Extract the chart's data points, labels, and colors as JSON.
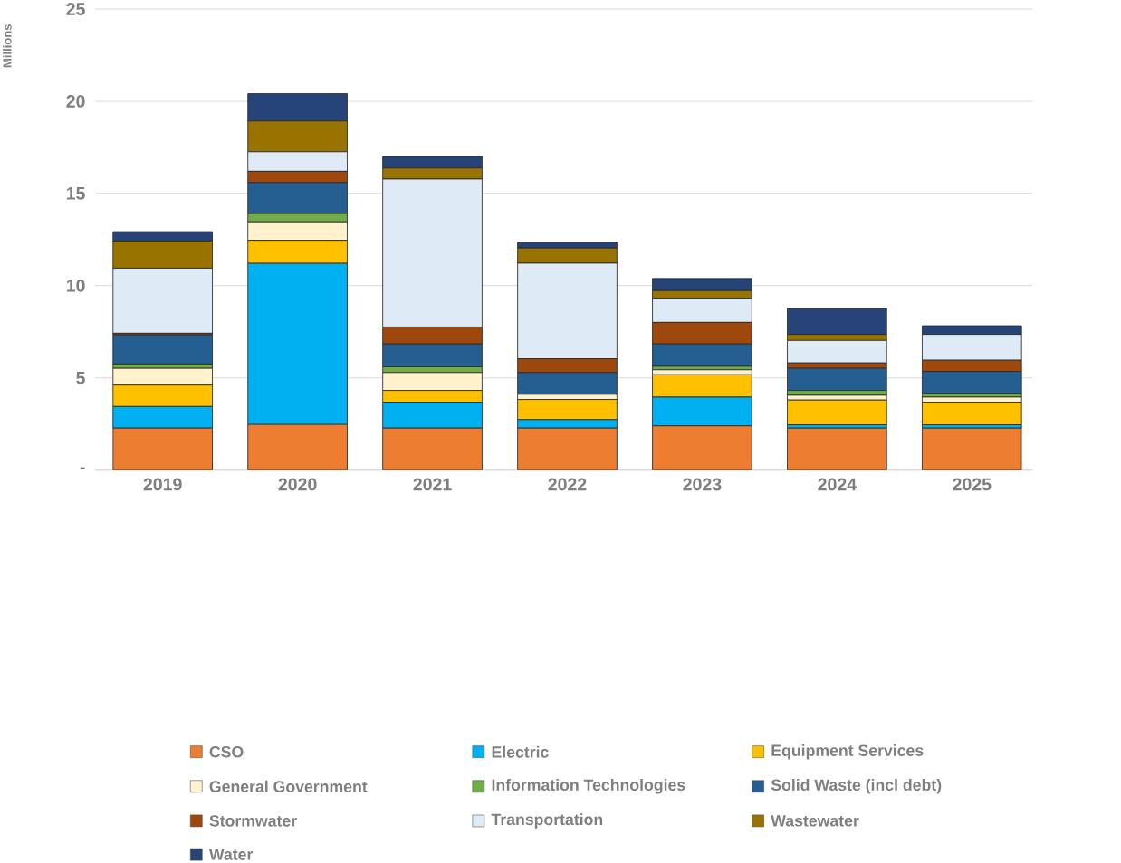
{
  "chart_data": {
    "type": "bar",
    "stacked": true,
    "ylabel": "Millions",
    "categories": [
      "2019",
      "2020",
      "2021",
      "2022",
      "2023",
      "2024",
      "2025"
    ],
    "series": [
      {
        "name": "CSO",
        "color": "#ed7d31",
        "values": [
          2.28,
          2.48,
          2.28,
          2.28,
          2.4,
          2.28,
          2.28
        ]
      },
      {
        "name": "Electric",
        "color": "#00b0f0",
        "values": [
          1.17,
          8.73,
          1.4,
          0.46,
          1.56,
          0.18,
          0.18
        ]
      },
      {
        "name": "Equipment Services",
        "color": "#ffc000",
        "values": [
          1.16,
          1.25,
          0.64,
          1.09,
          1.21,
          1.34,
          1.22
        ]
      },
      {
        "name": "General Government",
        "color": "#fff2cc",
        "values": [
          0.91,
          1.0,
          0.97,
          0.28,
          0.27,
          0.26,
          0.28
        ]
      },
      {
        "name": "Information Technologies",
        "color": "#70ad47",
        "values": [
          0.23,
          0.45,
          0.31,
          0,
          0.19,
          0.26,
          0.19
        ]
      },
      {
        "name": "Solid Waste (incl debt)",
        "color": "#255e91",
        "values": [
          1.58,
          1.68,
          1.24,
          1.18,
          1.21,
          1.2,
          1.2
        ]
      },
      {
        "name": "Stormwater",
        "color": "#9e480e",
        "values": [
          0.09,
          0.61,
          0.92,
          0.75,
          1.17,
          0.29,
          0.61
        ]
      },
      {
        "name": "Transportation",
        "color": "#deebf7",
        "values": [
          3.53,
          1.06,
          8.02,
          5.18,
          1.31,
          1.22,
          1.4
        ]
      },
      {
        "name": "Wastewater",
        "color": "#997300",
        "values": [
          1.47,
          1.67,
          0.6,
          0.82,
          0.41,
          0.33,
          0
        ]
      },
      {
        "name": "Water",
        "color": "#264478",
        "values": [
          0.51,
          1.48,
          0.62,
          0.32,
          0.66,
          1.41,
          0.47
        ]
      }
    ],
    "ylim": [
      0,
      25
    ],
    "yticks": [
      {
        "value": 0,
        "label": "-"
      },
      5,
      10,
      15,
      20,
      25
    ],
    "grid": "y",
    "legend": "bottom"
  }
}
